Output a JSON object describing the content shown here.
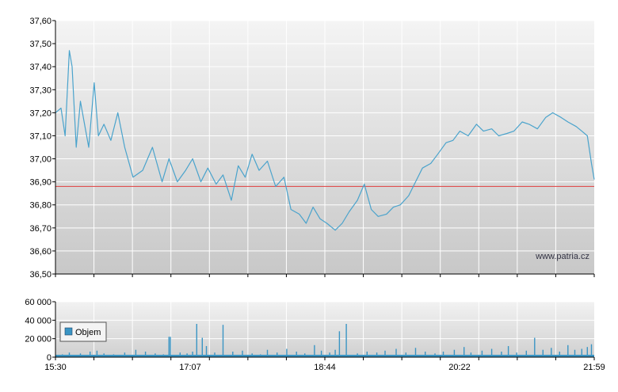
{
  "chart_data": [
    {
      "type": "line",
      "title": "",
      "xlabel": "",
      "ylabel": "",
      "ylim": [
        36.5,
        37.6
      ],
      "yticks": [
        "37,60",
        "37,50",
        "37,40",
        "37,30",
        "37,20",
        "37,10",
        "37,00",
        "36,90",
        "36,80",
        "36,70",
        "36,60",
        "36,50"
      ],
      "x_tick_labels": [
        "15:30",
        "17:07",
        "18:44",
        "20:22",
        "21:59"
      ],
      "x_range": [
        "15:30",
        "21:59"
      ],
      "grid": true,
      "reference_line": {
        "value": 36.88,
        "color": "#e05050"
      },
      "series": [
        {
          "color": "#4aa3cc",
          "x": [
            "15:30",
            "15:34",
            "15:37",
            "15:40",
            "15:42",
            "15:45",
            "15:48",
            "15:51",
            "15:54",
            "15:58",
            "16:01",
            "16:05",
            "16:10",
            "16:15",
            "16:20",
            "16:26",
            "16:33",
            "16:40",
            "16:47",
            "16:52",
            "16:58",
            "17:04",
            "17:09",
            "17:15",
            "17:20",
            "17:26",
            "17:31",
            "17:37",
            "17:42",
            "17:47",
            "17:52",
            "17:57",
            "18:03",
            "18:09",
            "18:15",
            "18:20",
            "18:26",
            "18:31",
            "18:36",
            "18:41",
            "18:46",
            "18:52",
            "18:57",
            "19:02",
            "19:08",
            "19:13",
            "19:18",
            "19:23",
            "19:29",
            "19:34",
            "19:39",
            "19:45",
            "19:50",
            "19:55",
            "20:01",
            "20:06",
            "20:12",
            "20:17",
            "20:22",
            "20:28",
            "20:34",
            "20:39",
            "20:45",
            "20:50",
            "20:56",
            "21:01",
            "21:07",
            "21:12",
            "21:18",
            "21:24",
            "21:29",
            "21:35",
            "21:40",
            "21:46",
            "21:50",
            "21:54",
            "21:57",
            "21:59"
          ],
          "y": [
            37.2,
            37.22,
            37.1,
            37.47,
            37.4,
            37.05,
            37.25,
            37.15,
            37.05,
            37.33,
            37.1,
            37.15,
            37.08,
            37.2,
            37.05,
            36.92,
            36.95,
            37.05,
            36.9,
            37.0,
            36.9,
            36.95,
            37.0,
            36.9,
            36.96,
            36.89,
            36.93,
            36.82,
            36.97,
            36.92,
            37.02,
            36.95,
            36.99,
            36.88,
            36.92,
            36.78,
            36.76,
            36.72,
            36.79,
            36.74,
            36.72,
            36.69,
            36.72,
            36.77,
            36.82,
            36.89,
            36.78,
            36.75,
            36.76,
            36.79,
            36.8,
            36.84,
            36.9,
            36.96,
            36.98,
            37.02,
            37.07,
            37.08,
            37.12,
            37.1,
            37.15,
            37.12,
            37.13,
            37.1,
            37.11,
            37.12,
            37.16,
            37.15,
            37.13,
            37.18,
            37.2,
            37.18,
            37.16,
            37.14,
            37.12,
            37.1,
            36.98,
            36.91
          ]
        }
      ]
    },
    {
      "type": "bar",
      "title": "",
      "xlabel": "",
      "ylabel": "",
      "ylim": [
        0,
        60000
      ],
      "yticks": [
        "60 000",
        "40 000",
        "20 000",
        "0"
      ],
      "x_tick_labels": [
        "15:30",
        "17:07",
        "18:44",
        "20:22",
        "21:59"
      ],
      "grid": true,
      "legend": {
        "entries": [
          "Objem"
        ],
        "placement": "left"
      },
      "series": [
        {
          "name": "Objem",
          "color": "#3a95c4",
          "x": [
            "15:32",
            "15:35",
            "15:40",
            "15:48",
            "15:55",
            "16:00",
            "16:05",
            "16:12",
            "16:20",
            "16:28",
            "16:35",
            "16:42",
            "16:48",
            "16:52",
            "16:53",
            "17:00",
            "17:05",
            "17:09",
            "17:12",
            "17:16",
            "17:19",
            "17:25",
            "17:31",
            "17:38",
            "17:45",
            "17:52",
            "17:58",
            "18:03",
            "18:10",
            "18:17",
            "18:24",
            "18:30",
            "18:37",
            "18:42",
            "18:48",
            "18:52",
            "18:55",
            "19:00",
            "19:08",
            "19:15",
            "19:22",
            "19:28",
            "19:36",
            "19:43",
            "19:50",
            "19:57",
            "20:04",
            "20:10",
            "20:18",
            "20:25",
            "20:30",
            "20:38",
            "20:45",
            "20:52",
            "20:57",
            "21:03",
            "21:10",
            "21:16",
            "21:22",
            "21:28",
            "21:34",
            "21:40",
            "21:45",
            "21:50",
            "21:54",
            "21:57"
          ],
          "values": [
            2000,
            3000,
            5000,
            4000,
            6000,
            7000,
            4000,
            3000,
            5000,
            8000,
            6000,
            4000,
            3000,
            22000,
            22000,
            5000,
            4000,
            6000,
            36000,
            21000,
            12000,
            5000,
            35000,
            6000,
            7000,
            4000,
            3000,
            8000,
            5000,
            9000,
            6000,
            4000,
            13000,
            7000,
            5000,
            8000,
            28000,
            36000,
            4000,
            6000,
            5000,
            7000,
            9000,
            5000,
            10000,
            6000,
            4000,
            6000,
            8000,
            11000,
            5000,
            7000,
            9000,
            6000,
            12000,
            5000,
            7000,
            21000,
            8000,
            10000,
            6000,
            13000,
            8000,
            9000,
            11000,
            14000
          ]
        }
      ]
    }
  ],
  "watermark": "www.patria.cz"
}
